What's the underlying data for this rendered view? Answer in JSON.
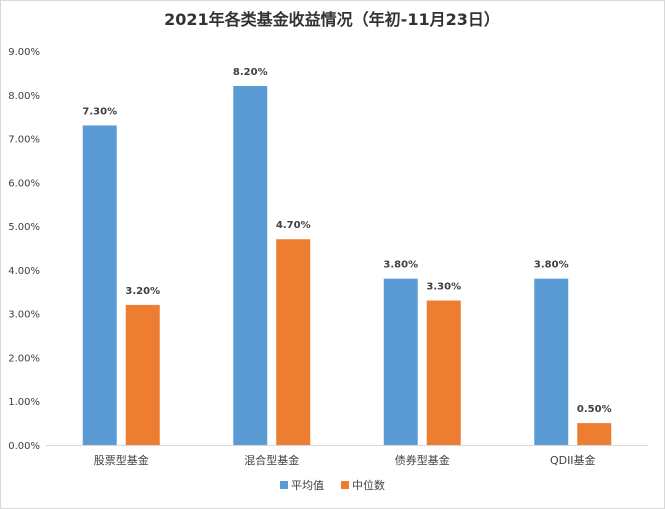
{
  "chart_data": {
    "type": "bar",
    "title": "2021年各类基金收益情况（年初-11月23日）",
    "xlabel": "",
    "ylabel": "",
    "categories": [
      "股票型基金",
      "混合型基金",
      "债券型基金",
      "QDII基金"
    ],
    "series": [
      {
        "name": "平均值",
        "color": "#5b9bd5",
        "values": [
          7.3,
          8.2,
          3.8,
          3.8
        ],
        "labels": [
          "7.30%",
          "8.20%",
          "3.80%",
          "3.80%"
        ]
      },
      {
        "name": "中位数",
        "color": "#ed7d31",
        "values": [
          3.2,
          4.7,
          3.3,
          0.5
        ],
        "labels": [
          "3.20%",
          "4.70%",
          "3.30%",
          "0.50%"
        ]
      }
    ],
    "ylim": [
      0,
      9
    ],
    "yticks": [
      0,
      1,
      2,
      3,
      4,
      5,
      6,
      7,
      8,
      9
    ],
    "ytick_labels": [
      "0.00%",
      "1.00%",
      "2.00%",
      "3.00%",
      "4.00%",
      "5.00%",
      "6.00%",
      "7.00%",
      "8.00%",
      "9.00%"
    ],
    "grid": false,
    "legend_position": "bottom"
  }
}
